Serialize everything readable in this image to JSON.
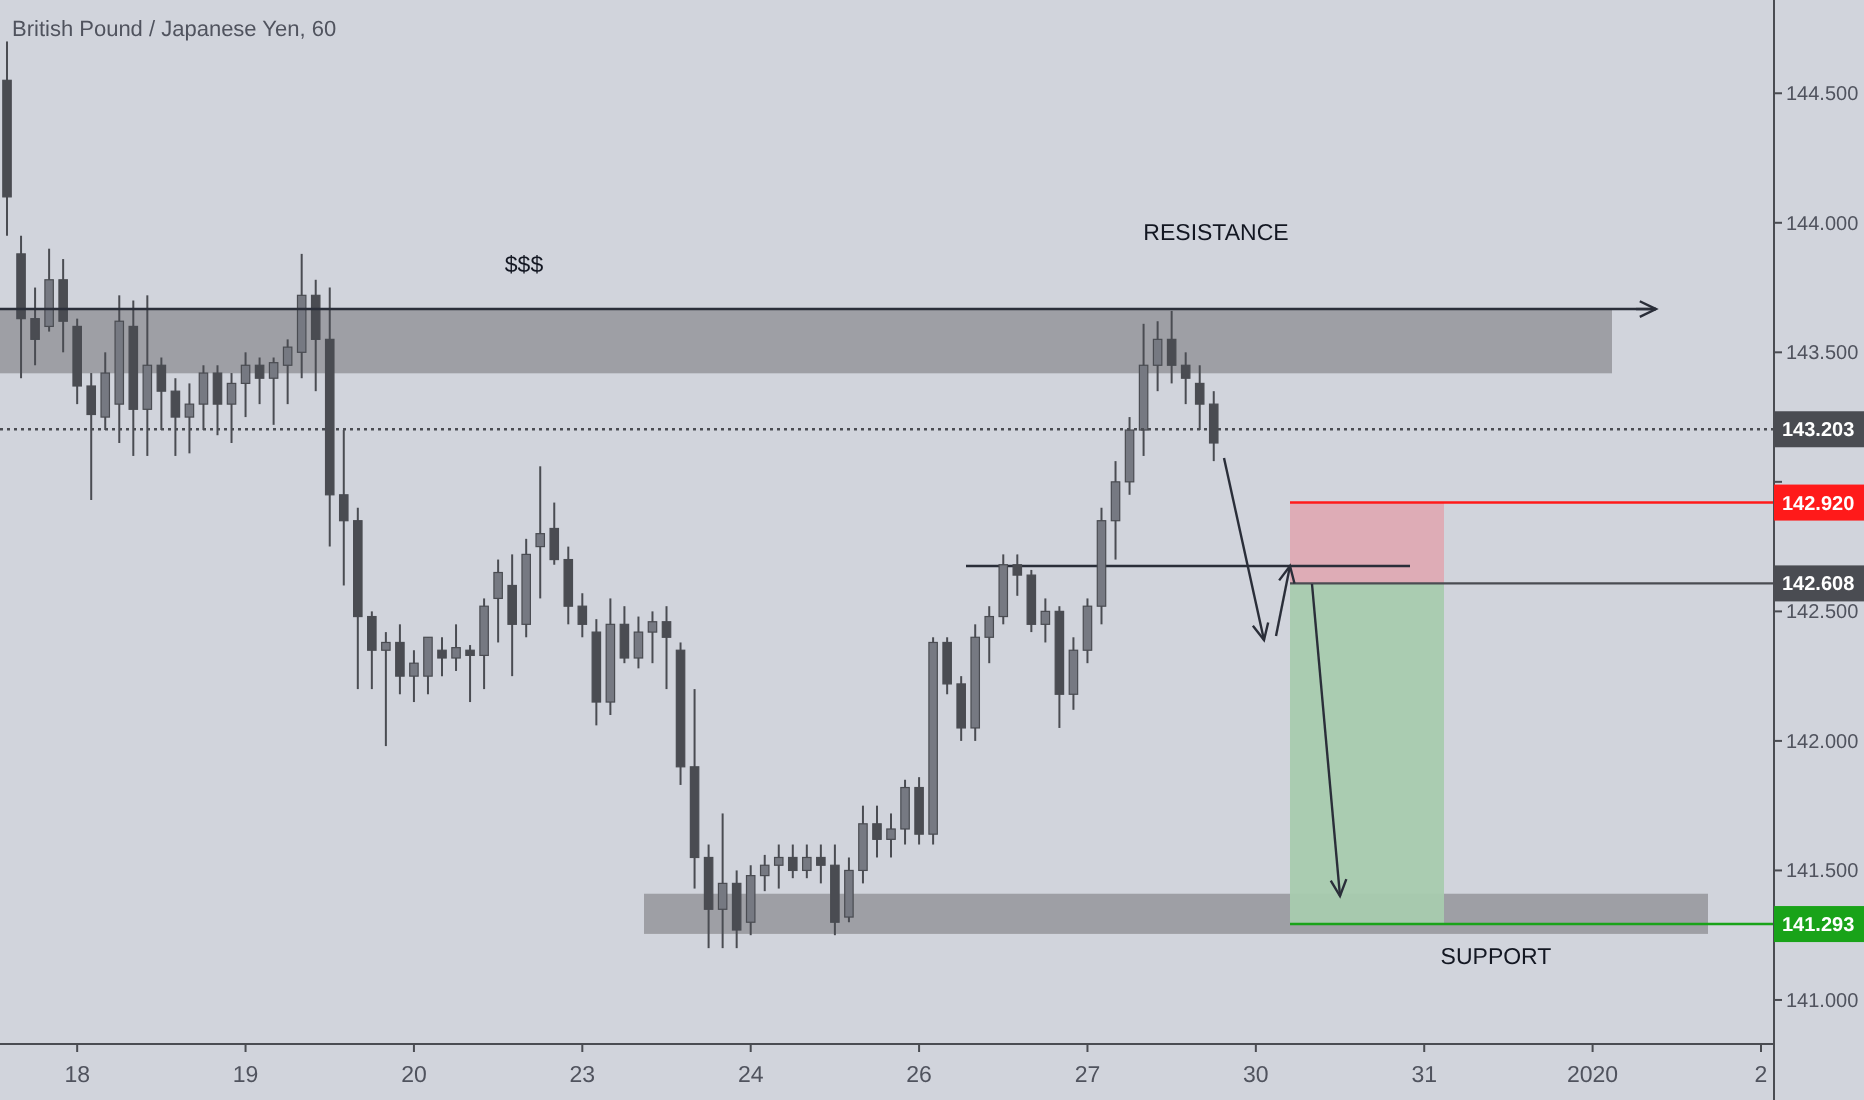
{
  "chart_data": {
    "type": "candlestick",
    "title": "British Pound / Japanese Yen, 60",
    "color": "#4a4c52",
    "categories": [
      null,
      null,
      null,
      null,
      null,
      "18",
      null,
      null,
      null,
      null,
      null,
      null,
      null,
      null,
      null,
      null,
      null,
      "19",
      null,
      null,
      null,
      null,
      null,
      null,
      null,
      null,
      null,
      null,
      null,
      "20",
      null,
      null,
      null,
      null,
      null,
      null,
      null,
      null,
      null,
      null,
      null,
      "23",
      null,
      null,
      null,
      null,
      null,
      null,
      null,
      null,
      null,
      null,
      null,
      "24",
      null,
      null,
      null,
      null,
      null,
      null,
      null,
      null,
      null,
      null,
      null,
      "26",
      null,
      null,
      null,
      null,
      null,
      null,
      null,
      null,
      null,
      null,
      null,
      "27",
      null,
      null,
      null,
      null,
      null,
      null,
      null,
      null,
      null,
      null,
      null,
      "30",
      null,
      null,
      null,
      null,
      null,
      null,
      null,
      null,
      null,
      null,
      null,
      "31",
      null,
      null,
      null,
      null,
      null,
      null,
      null,
      null,
      null,
      null,
      null,
      "2020",
      null,
      null,
      null,
      null,
      null,
      null,
      null,
      null,
      null,
      null,
      null,
      "2"
    ],
    "ohlc": [
      [
        144.55,
        144.7,
        143.95,
        144.1
      ],
      [
        143.88,
        143.95,
        143.4,
        143.63
      ],
      [
        143.63,
        143.75,
        143.45,
        143.55
      ],
      [
        143.6,
        143.9,
        143.58,
        143.78
      ],
      [
        143.78,
        143.86,
        143.5,
        143.62
      ],
      [
        143.6,
        143.63,
        143.3,
        143.37
      ],
      [
        143.37,
        143.42,
        142.93,
        143.26
      ],
      [
        143.25,
        143.5,
        143.2,
        143.42
      ],
      [
        143.3,
        143.72,
        143.15,
        143.62
      ],
      [
        143.6,
        143.7,
        143.1,
        143.28
      ],
      [
        143.28,
        143.72,
        143.1,
        143.45
      ],
      [
        143.45,
        143.48,
        143.2,
        143.35
      ],
      [
        143.35,
        143.4,
        143.1,
        143.25
      ],
      [
        143.25,
        143.38,
        143.11,
        143.3
      ],
      [
        143.3,
        143.45,
        143.2,
        143.42
      ],
      [
        143.42,
        143.45,
        143.18,
        143.3
      ],
      [
        143.3,
        143.42,
        143.15,
        143.38
      ],
      [
        143.38,
        143.5,
        143.25,
        143.45
      ],
      [
        143.45,
        143.48,
        143.3,
        143.4
      ],
      [
        143.4,
        143.48,
        143.22,
        143.46
      ],
      [
        143.45,
        143.55,
        143.3,
        143.52
      ],
      [
        143.5,
        143.88,
        143.4,
        143.72
      ],
      [
        143.72,
        143.78,
        143.35,
        143.55
      ],
      [
        143.55,
        143.75,
        142.75,
        142.95
      ],
      [
        142.95,
        143.2,
        142.6,
        142.85
      ],
      [
        142.85,
        142.9,
        142.2,
        142.48
      ],
      [
        142.48,
        142.5,
        142.2,
        142.35
      ],
      [
        142.35,
        142.42,
        141.98,
        142.38
      ],
      [
        142.38,
        142.45,
        142.18,
        142.25
      ],
      [
        142.25,
        142.35,
        142.15,
        142.3
      ],
      [
        142.25,
        142.4,
        142.18,
        142.4
      ],
      [
        142.35,
        142.4,
        142.25,
        142.32
      ],
      [
        142.32,
        142.45,
        142.27,
        142.36
      ],
      [
        142.35,
        142.37,
        142.15,
        142.33
      ],
      [
        142.33,
        142.55,
        142.2,
        142.52
      ],
      [
        142.55,
        142.7,
        142.38,
        142.65
      ],
      [
        142.6,
        142.72,
        142.25,
        142.45
      ],
      [
        142.45,
        142.78,
        142.4,
        142.72
      ],
      [
        142.75,
        143.06,
        142.55,
        142.8
      ],
      [
        142.82,
        142.92,
        142.68,
        142.7
      ],
      [
        142.7,
        142.75,
        142.45,
        142.52
      ],
      [
        142.52,
        142.57,
        142.4,
        142.45
      ],
      [
        142.42,
        142.47,
        142.06,
        142.15
      ],
      [
        142.15,
        142.55,
        142.1,
        142.45
      ],
      [
        142.45,
        142.52,
        142.3,
        142.32
      ],
      [
        142.32,
        142.48,
        142.28,
        142.42
      ],
      [
        142.42,
        142.5,
        142.3,
        142.46
      ],
      [
        142.46,
        142.52,
        142.2,
        142.4
      ],
      [
        142.35,
        142.38,
        141.83,
        141.9
      ],
      [
        141.9,
        142.2,
        141.43,
        141.55
      ],
      [
        141.55,
        141.6,
        141.2,
        141.35
      ],
      [
        141.35,
        141.72,
        141.2,
        141.45
      ],
      [
        141.45,
        141.5,
        141.2,
        141.27
      ],
      [
        141.3,
        141.52,
        141.25,
        141.48
      ],
      [
        141.48,
        141.56,
        141.42,
        141.52
      ],
      [
        141.52,
        141.6,
        141.43,
        141.55
      ],
      [
        141.55,
        141.6,
        141.47,
        141.5
      ],
      [
        141.5,
        141.6,
        141.47,
        141.55
      ],
      [
        141.55,
        141.6,
        141.45,
        141.52
      ],
      [
        141.52,
        141.6,
        141.25,
        141.3
      ],
      [
        141.32,
        141.55,
        141.3,
        141.5
      ],
      [
        141.5,
        141.75,
        141.45,
        141.68
      ],
      [
        141.68,
        141.75,
        141.55,
        141.62
      ],
      [
        141.62,
        141.72,
        141.55,
        141.66
      ],
      [
        141.66,
        141.85,
        141.6,
        141.82
      ],
      [
        141.82,
        141.86,
        141.6,
        141.64
      ],
      [
        141.64,
        142.4,
        141.6,
        142.38
      ],
      [
        142.38,
        142.4,
        142.18,
        142.22
      ],
      [
        142.22,
        142.25,
        142.0,
        142.05
      ],
      [
        142.05,
        142.45,
        142.0,
        142.4
      ],
      [
        142.4,
        142.52,
        142.3,
        142.48
      ],
      [
        142.48,
        142.72,
        142.45,
        142.68
      ],
      [
        142.68,
        142.72,
        142.56,
        142.64
      ],
      [
        142.64,
        142.66,
        142.42,
        142.45
      ],
      [
        142.45,
        142.55,
        142.38,
        142.5
      ],
      [
        142.5,
        142.52,
        142.05,
        142.18
      ],
      [
        142.18,
        142.4,
        142.12,
        142.35
      ],
      [
        142.35,
        142.55,
        142.3,
        142.52
      ],
      [
        142.52,
        142.9,
        142.45,
        142.85
      ],
      [
        142.85,
        143.08,
        142.7,
        143.0
      ],
      [
        143.0,
        143.25,
        142.95,
        143.2
      ],
      [
        143.2,
        143.61,
        143.1,
        143.45
      ],
      [
        143.45,
        143.62,
        143.35,
        143.55
      ],
      [
        143.55,
        143.66,
        143.38,
        143.45
      ],
      [
        143.45,
        143.5,
        143.3,
        143.4
      ],
      [
        143.38,
        143.45,
        143.2,
        143.3
      ],
      [
        143.3,
        143.35,
        143.08,
        143.15
      ],
      null,
      null,
      null,
      null,
      null,
      null,
      null,
      null,
      null,
      null,
      null,
      null,
      null,
      null,
      null,
      null,
      null,
      null,
      null,
      null,
      null,
      null,
      null,
      null,
      null,
      null,
      null,
      null,
      null,
      null,
      null,
      null,
      null,
      null,
      null,
      null,
      null,
      null,
      null
    ],
    "ylim": [
      140.83,
      144.86
    ],
    "yticks": [
      {
        "value": 141,
        "label": "141.000"
      },
      {
        "value": 141.5,
        "label": "141.500"
      },
      {
        "value": 142,
        "label": "142.000"
      },
      {
        "value": 142.5,
        "label": "142.500"
      },
      {
        "value": 143,
        "label": null
      },
      {
        "value": 143.5,
        "label": "143.500"
      },
      {
        "value": 144,
        "label": "144.000"
      },
      {
        "value": 144.5,
        "label": "144.500"
      }
    ],
    "bands": [
      {
        "axis": "y",
        "from": 143.419,
        "to": 143.667,
        "color": "#9b9ca1"
      },
      {
        "axis": "y",
        "from": 141.255,
        "to": 141.41,
        "color": "#9b9ca1"
      },
      {
        "axis": "y",
        "from": 142.608,
        "to": 142.92,
        "color": "#deaab3"
      },
      {
        "axis": "y",
        "from": 141.293,
        "to": 142.608,
        "color": "#a8cbae"
      }
    ],
    "ref_lines": [
      {
        "axis": "y",
        "value": 143.203,
        "label": "143.203",
        "color": "#4a4c52",
        "line_style": "dotted"
      },
      {
        "axis": "y",
        "value": 142.92,
        "label": "142.920",
        "color": "#ff1a1a",
        "line_style": "solid"
      },
      {
        "axis": "y",
        "value": 142.608,
        "label": "142.608",
        "color": "#4a4c52",
        "line_style": "solid"
      },
      {
        "axis": "y",
        "value": 141.293,
        "label": "141.293",
        "color": "#19a319",
        "line_style": "solid"
      },
      {
        "axis": "y",
        "value": 143.667,
        "color": "#2a2e39",
        "line_style": "solid"
      }
    ],
    "annotations": [
      "$$$",
      "RESISTANCE",
      "SUPPORT"
    ]
  }
}
